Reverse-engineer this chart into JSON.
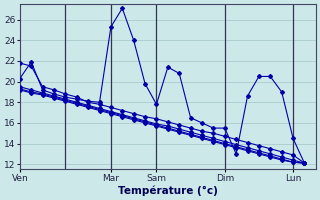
{
  "title": "Température (°c)",
  "bg_color": "#cce8e8",
  "grid_color": "#aacccc",
  "line_color": "#0000aa",
  "ylim": [
    11.5,
    27.5
  ],
  "yticks": [
    12,
    14,
    16,
    18,
    20,
    22,
    24,
    26
  ],
  "day_labels": [
    "Ven",
    "Mar",
    "Sam",
    "Dim",
    "Lun"
  ],
  "day_x": [
    0,
    8,
    12,
    18,
    24
  ],
  "vline_x": [
    4,
    8,
    12,
    18,
    24
  ],
  "xlim": [
    0,
    26
  ],
  "series": [
    [
      20.3,
      21.9,
      19.2,
      18.8,
      18.5,
      18.3,
      18.1,
      18.0,
      25.3,
      27.1,
      24.0,
      19.8,
      17.8,
      21.4,
      20.8,
      16.5,
      16.0,
      15.5,
      15.5,
      13.0,
      18.6,
      20.5,
      20.5,
      19.0,
      14.5,
      12.1
    ],
    [
      21.8,
      21.5,
      19.5,
      19.2,
      18.8,
      18.5,
      18.0,
      17.8,
      17.5,
      17.2,
      16.9,
      16.6,
      16.4,
      16.1,
      15.8,
      15.5,
      15.2,
      15.0,
      14.7,
      14.4,
      14.1,
      13.8,
      13.5,
      13.2,
      12.9,
      12.1
    ],
    [
      19.5,
      19.2,
      18.9,
      18.6,
      18.3,
      18.0,
      17.7,
      17.4,
      17.1,
      16.8,
      16.5,
      16.2,
      15.9,
      15.7,
      15.4,
      15.1,
      14.8,
      14.5,
      14.2,
      13.9,
      13.6,
      13.3,
      13.0,
      12.7,
      12.4,
      12.1
    ],
    [
      19.3,
      19.0,
      18.8,
      18.5,
      18.2,
      17.9,
      17.6,
      17.3,
      17.0,
      16.7,
      16.4,
      16.1,
      15.8,
      15.5,
      15.2,
      14.9,
      14.6,
      14.3,
      14.0,
      13.7,
      13.4,
      13.1,
      12.8,
      12.5,
      12.2,
      12.1
    ],
    [
      19.2,
      18.9,
      18.7,
      18.4,
      18.1,
      17.8,
      17.5,
      17.2,
      16.9,
      16.6,
      16.3,
      16.0,
      15.7,
      15.4,
      15.1,
      14.8,
      14.5,
      14.2,
      13.9,
      13.6,
      13.3,
      13.0,
      12.7,
      12.4,
      12.2,
      12.1
    ]
  ],
  "n_points": 26,
  "marker": "D",
  "markersize": 2.0,
  "linewidth": 0.8
}
